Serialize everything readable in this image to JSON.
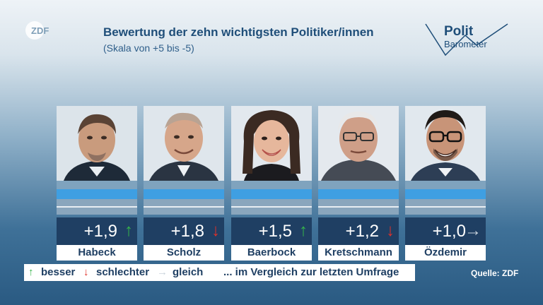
{
  "header": {
    "title": "Bewertung der zehn wichtigsten Politiker/innen",
    "subtitle": "(Skala von +5 bis -5)",
    "broadcaster_logo": "ZDF",
    "show_logo": {
      "line1": "Polit",
      "line2": "Barometer"
    }
  },
  "politicians": [
    {
      "name": "Habeck",
      "score": "+1,9",
      "trend": "up",
      "arrow": "↑",
      "arrow_color": "#35b44a"
    },
    {
      "name": "Scholz",
      "score": "+1,8",
      "trend": "down",
      "arrow": "↓",
      "arrow_color": "#e0302a"
    },
    {
      "name": "Baerbock",
      "score": "+1,5",
      "trend": "up",
      "arrow": "↑",
      "arrow_color": "#35b44a"
    },
    {
      "name": "Kretschmann",
      "score": "+1,2",
      "trend": "down",
      "arrow": "↓",
      "arrow_color": "#e0302a"
    },
    {
      "name": "Özdemir",
      "score": "+1,0",
      "trend": "same",
      "arrow": "→",
      "arrow_color": "#c9d3dc"
    }
  ],
  "legend": {
    "up_arrow": "↑",
    "up_label": "besser",
    "down_arrow": "↓",
    "down_label": "schlechter",
    "same_arrow": "→",
    "same_label": "gleich",
    "note": "... im Vergleich zur letzten Umfrage"
  },
  "source": "Quelle: ZDF",
  "colors": {
    "up": "#35b44a",
    "down": "#e0302a",
    "same": "#c9d3dc",
    "title": "#1f4e79"
  }
}
